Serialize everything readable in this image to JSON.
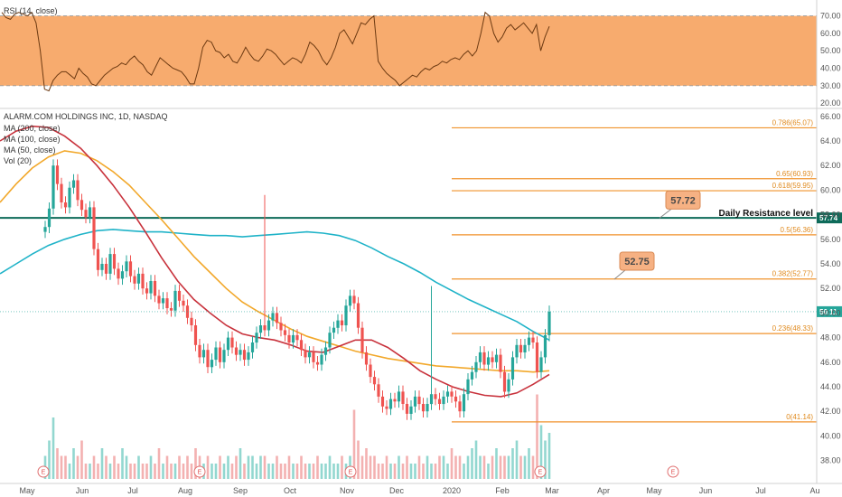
{
  "chart_data": [
    {
      "type": "line",
      "title": "RSI (14, close)",
      "ylim": [
        18,
        76
      ],
      "yticks": [
        20.0,
        30.0,
        40.0,
        50.0,
        60.0,
        70.0
      ],
      "ytick_labels": [
        "20.00",
        "30.00",
        "40.00",
        "50.00",
        "60.00",
        "70.00"
      ],
      "band": [
        30,
        70
      ],
      "band_color": "#f6a25e",
      "line_color": "#6d3a12",
      "series": [
        {
          "values": [
            72,
            69,
            68,
            71,
            72,
            71,
            70,
            72,
            66,
            50,
            28,
            27,
            33,
            36,
            38,
            38,
            36,
            34,
            40,
            37,
            35,
            31,
            30,
            33,
            36,
            38,
            40,
            41,
            43,
            42,
            45,
            47,
            44,
            42,
            38,
            36,
            41,
            46,
            44,
            42,
            40,
            39,
            38,
            35,
            31,
            31,
            40,
            52,
            56,
            55,
            50,
            49,
            46,
            48,
            44,
            43,
            47,
            52,
            48,
            45,
            44,
            47,
            51,
            50,
            48,
            45,
            42,
            44,
            46,
            45,
            43,
            48,
            55,
            53,
            50,
            45,
            42,
            46,
            52,
            60,
            62,
            58,
            54,
            60,
            66,
            65,
            68,
            70,
            44,
            40,
            37,
            35,
            33,
            30,
            32,
            34,
            36,
            35,
            38,
            40,
            39,
            41,
            42,
            44,
            43,
            45,
            46,
            45,
            48,
            50,
            47,
            50,
            60,
            72,
            70,
            60,
            55,
            58,
            63,
            65,
            62,
            64,
            66,
            63,
            60,
            65,
            50,
            58,
            64
          ]
        }
      ]
    },
    {
      "type": "candlestick",
      "title": "ALARM.COM HOLDINGS INC, 1D, NASDAQ",
      "ylim": [
        36.5,
        66.5
      ],
      "yticks": [
        38.0,
        40.0,
        42.0,
        44.0,
        46.0,
        48.0,
        50.0,
        52.0,
        54.0,
        56.0,
        58.0,
        60.0,
        62.0,
        64.0,
        66.0
      ],
      "ytick_labels": [
        "38.00",
        "40.00",
        "42.00",
        "44.00",
        "46.00",
        "48.00",
        "50.00",
        "52.00",
        "54.00",
        "56.00",
        "58.00",
        "60.00",
        "62.00",
        "64.00",
        "66.00"
      ],
      "xticks": [
        "May",
        "Jun",
        "Jul",
        "Aug",
        "Sep",
        "Oct",
        "Nov",
        "Dec",
        "2020",
        "Feb",
        "Mar",
        "Apr",
        "May",
        "Jun",
        "Jul",
        "Au"
      ],
      "indicators": [
        "MA (200, close)",
        "MA (100, close)",
        "MA (50, close)",
        "Vol (20)"
      ],
      "fib_levels": [
        {
          "ratio": "0.786",
          "value": 65.07,
          "label": "0.786(65.07)"
        },
        {
          "ratio": "0.65",
          "value": 60.93,
          "label": "0.65(60.93)"
        },
        {
          "ratio": "0.618",
          "value": 59.95,
          "label": "0.618(59.95)"
        },
        {
          "ratio": "0.5",
          "value": 56.36,
          "label": "0.5(56.36)"
        },
        {
          "ratio": "0.382",
          "value": 52.77,
          "label": "0.382(52.77)"
        },
        {
          "ratio": "0.236",
          "value": 48.33,
          "label": "0.236(48.33)"
        },
        {
          "ratio": "0",
          "value": 41.14,
          "label": "0(41.14)"
        }
      ],
      "resistance": {
        "value": 57.74,
        "label": "Daily Resistance level",
        "axis_label": "57.74",
        "color": "#0e6b5a"
      },
      "badges": [
        {
          "text": "57.72",
          "value": 57.72
        },
        {
          "text": "52.75",
          "value": 52.75
        }
      ],
      "last_price": {
        "value": 50.11,
        "label": "50.11",
        "color": "#26a69a"
      },
      "ma200": {
        "color": "#1fb3c8",
        "values": [
          53.2,
          54.0,
          54.8,
          55.5,
          56.0,
          56.4,
          56.7,
          56.8,
          56.7,
          56.6,
          56.6,
          56.5,
          56.4,
          56.3,
          56.3,
          56.2,
          56.3,
          56.4,
          56.5,
          56.6,
          56.5,
          56.3,
          55.9,
          55.3,
          54.6,
          54.0,
          53.3,
          52.5,
          51.8,
          51.1,
          50.5,
          49.9,
          49.3,
          48.5,
          47.8
        ]
      },
      "ma100": {
        "color": "#f2a82b",
        "values": [
          59.0,
          60.5,
          61.8,
          62.7,
          63.2,
          63.0,
          62.4,
          61.5,
          60.4,
          59.0,
          57.6,
          56.1,
          54.6,
          53.3,
          52.0,
          50.9,
          50.1,
          49.4,
          48.7,
          48.1,
          47.7,
          47.3,
          46.9,
          46.6,
          46.3,
          46.1,
          45.9,
          45.7,
          45.6,
          45.5,
          45.4,
          45.3,
          45.3,
          45.2,
          45.3
        ]
      },
      "ma50": {
        "color": "#c8323c",
        "values": [
          64.0,
          64.8,
          65.2,
          65.1,
          64.4,
          63.4,
          62.0,
          60.4,
          58.6,
          56.6,
          54.5,
          52.6,
          51.1,
          50.0,
          49.0,
          48.3,
          48.0,
          47.8,
          47.4,
          46.9,
          46.8,
          47.3,
          47.8,
          47.8,
          47.2,
          46.3,
          45.3,
          44.6,
          44.0,
          43.6,
          43.3,
          43.2,
          43.5,
          44.2,
          45.0
        ]
      },
      "closes": [
        57.0,
        58.5,
        62.0,
        60.5,
        59.0,
        58.6,
        60.2,
        60.8,
        59.2,
        58.4,
        57.8,
        58.6,
        55.2,
        53.5,
        54.0,
        53.2,
        54.8,
        53.6,
        52.8,
        53.4,
        54.2,
        53.0,
        52.4,
        53.2,
        52.0,
        51.6,
        52.6,
        51.4,
        50.8,
        51.2,
        50.4,
        50.2,
        51.8,
        51.0,
        50.6,
        49.6,
        49.0,
        47.4,
        46.4,
        47.0,
        45.6,
        46.2,
        47.2,
        46.0,
        47.0,
        48.0,
        47.2,
        46.6,
        47.0,
        46.2,
        46.8,
        47.6,
        48.4,
        49.0,
        48.6,
        49.4,
        50.0,
        49.2,
        48.6,
        48.2,
        47.6,
        48.2,
        47.8,
        47.0,
        46.4,
        46.8,
        46.0,
        45.8,
        46.6,
        47.2,
        48.4,
        48.8,
        49.4,
        49.0,
        50.6,
        51.4,
        50.8,
        48.8,
        46.8,
        45.8,
        44.8,
        44.2,
        43.2,
        42.4,
        42.2,
        43.0,
        42.8,
        43.6,
        42.6,
        41.8,
        42.4,
        43.2,
        42.6,
        42.0,
        42.6,
        43.4,
        43.0,
        42.6,
        43.2,
        43.6,
        43.2,
        42.8,
        42.0,
        43.4,
        44.6,
        45.2,
        46.0,
        46.8,
        45.8,
        46.4,
        46.0,
        46.6,
        45.2,
        43.6,
        44.6,
        46.4,
        47.4,
        46.8,
        47.4,
        48.0,
        47.6,
        45.2,
        46.4,
        48.2,
        50.11
      ],
      "spikes": [
        {
          "index": 54,
          "high": 59.6
        },
        {
          "index": 95,
          "high": 52.2
        }
      ],
      "volumes": [
        3,
        5,
        8,
        4,
        3,
        3,
        2,
        4,
        3,
        5,
        2,
        2,
        3,
        2,
        4,
        3,
        2,
        3,
        2,
        4,
        3,
        2,
        2,
        3,
        2,
        2,
        3,
        2,
        4,
        2,
        3,
        2,
        2,
        3,
        2,
        3,
        2,
        4,
        3,
        2,
        3,
        2,
        2,
        3,
        2,
        3,
        2,
        3,
        4,
        2,
        3,
        3,
        2,
        3,
        3,
        2,
        2,
        3,
        2,
        2,
        3,
        2,
        2,
        3,
        2,
        2,
        2,
        3,
        2,
        2,
        3,
        2,
        2,
        3,
        2,
        3,
        9,
        5,
        3,
        4,
        3,
        3,
        2,
        2,
        3,
        2,
        2,
        3,
        2,
        3,
        2,
        2,
        3,
        2,
        3,
        2,
        2,
        3,
        3,
        2,
        4,
        3,
        3,
        2,
        3,
        4,
        5,
        3,
        3,
        2,
        3,
        4,
        3,
        3,
        3,
        4,
        5,
        3,
        3,
        4,
        3,
        11,
        7,
        5,
        6
      ]
    }
  ]
}
